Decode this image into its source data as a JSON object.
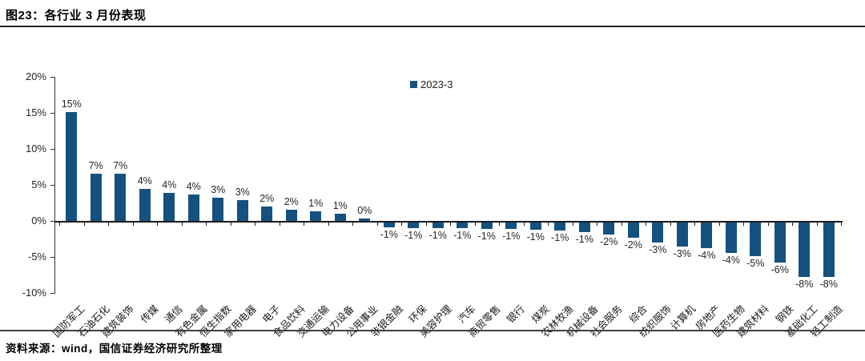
{
  "header": {
    "title": "图23：各行业 3 月份表现"
  },
  "footer": {
    "source": "资料来源：wind，国信证券经济研究所整理"
  },
  "colors": {
    "bar": "#15517e",
    "axis": "#333333",
    "zero_line": "#1a1a1a"
  },
  "chart_data": {
    "type": "bar",
    "title": "各行业 3 月份表现",
    "legend": [
      {
        "label": "2023-3",
        "color": "#15517e"
      }
    ],
    "legend_position": "top-center",
    "grid": false,
    "xlabel": "",
    "ylabel": "",
    "ylim": [
      -10,
      20
    ],
    "yticks": [
      {
        "value": 20,
        "label": "20%"
      },
      {
        "value": 15,
        "label": "15%"
      },
      {
        "value": 10,
        "label": "10%"
      },
      {
        "value": 5,
        "label": "5%"
      },
      {
        "value": 0,
        "label": "0%"
      },
      {
        "value": -5,
        "label": "-5%"
      },
      {
        "value": -10,
        "label": "-10%"
      }
    ],
    "categories": [
      "国防军工",
      "石油石化",
      "建筑装饰",
      "传媒",
      "通信",
      "有色金属",
      "恒生指数",
      "家用电器",
      "电子",
      "食品饮料",
      "交通运输",
      "电力设备",
      "公用事业",
      "非银金融",
      "环保",
      "美容护理",
      "汽车",
      "商贸零售",
      "银行",
      "煤炭",
      "农林牧渔",
      "机械设备",
      "社会服务",
      "综合",
      "纺织服饰",
      "计算机",
      "房地产",
      "医药生物",
      "建筑材料",
      "钢铁",
      "基础化工",
      "轻工制造"
    ],
    "series": [
      {
        "name": "2023-3",
        "values": [
          15.1,
          6.6,
          6.6,
          4.5,
          3.9,
          3.7,
          3.2,
          2.9,
          2.0,
          1.6,
          1.3,
          0.95,
          0.3,
          -0.7,
          -0.75,
          -0.8,
          -0.8,
          -0.85,
          -0.9,
          -1.0,
          -1.1,
          -1.3,
          -1.7,
          -2.1,
          -2.8,
          -3.3,
          -3.6,
          -4.2,
          -4.7,
          -5.6,
          -7.6,
          -7.6
        ],
        "labels": [
          "15%",
          "7%",
          "7%",
          "4%",
          "4%",
          "4%",
          "3%",
          "3%",
          "2%",
          "2%",
          "1%",
          "1%",
          "0%",
          "-1%",
          "-1%",
          "-1%",
          "-1%",
          "-1%",
          "-1%",
          "-1%",
          "-1%",
          "-1%",
          "-2%",
          "-2%",
          "-3%",
          "-3%",
          "-4%",
          "-4%",
          "-5%",
          "-6%",
          "-8%",
          "-8%"
        ]
      }
    ]
  }
}
